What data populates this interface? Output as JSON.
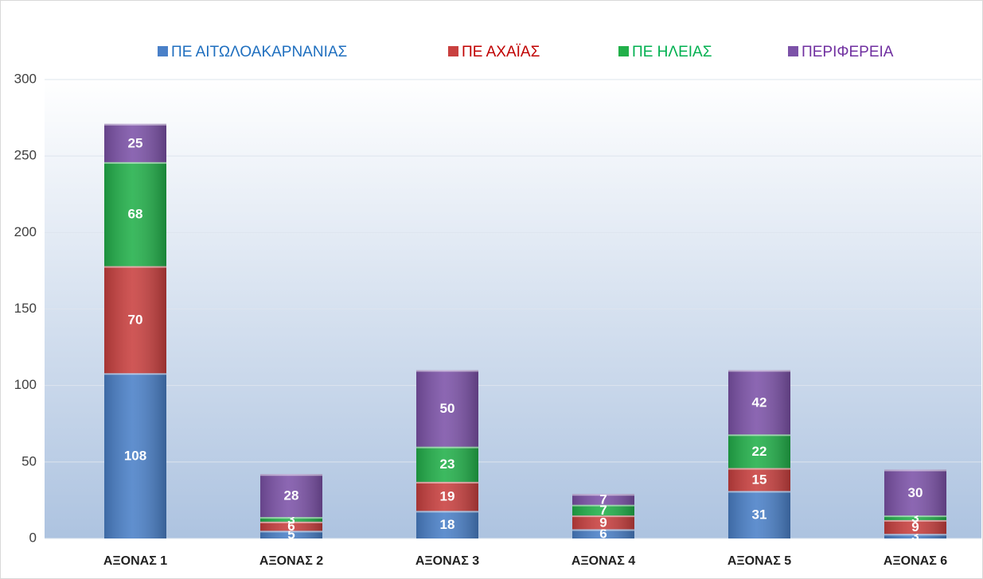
{
  "chart_data": {
    "type": "stacked_bar",
    "categories": [
      "ΑΞΟΝΑΣ 1",
      "ΑΞΟΝΑΣ 2",
      "ΑΞΟΝΑΣ 3",
      "ΑΞΟΝΑΣ 4",
      "ΑΞΟΝΑΣ 5",
      "ΑΞΟΝΑΣ 6"
    ],
    "series": [
      {
        "name": "ΠΕ ΑΙΤΩΛΟΑΚΑΡΝΑΝΙΑΣ",
        "color": "#4a80c8",
        "label_color": "#1f6fbf",
        "values": [
          108,
          5,
          18,
          6,
          31,
          3
        ]
      },
      {
        "name": "ΠΕ ΑΧΑΪΑΣ",
        "color": "#c9403f",
        "label_color": "#c00000",
        "values": [
          70,
          6,
          19,
          9,
          15,
          9
        ]
      },
      {
        "name": "ΠΕ ΗΛΕΙΑΣ",
        "color": "#22b04a",
        "label_color": "#00b050",
        "values": [
          68,
          3,
          23,
          7,
          22,
          3
        ]
      },
      {
        "name": "ΠΕΡΙΦΕΡΕΙΑ",
        "color": "#7c52a8",
        "label_color": "#7030a0",
        "values": [
          25,
          28,
          50,
          7,
          42,
          30
        ]
      }
    ],
    "ylim": [
      0,
      300
    ],
    "yticks": [
      0,
      50,
      100,
      150,
      200,
      250,
      300
    ],
    "grid": true,
    "legend": "top"
  }
}
